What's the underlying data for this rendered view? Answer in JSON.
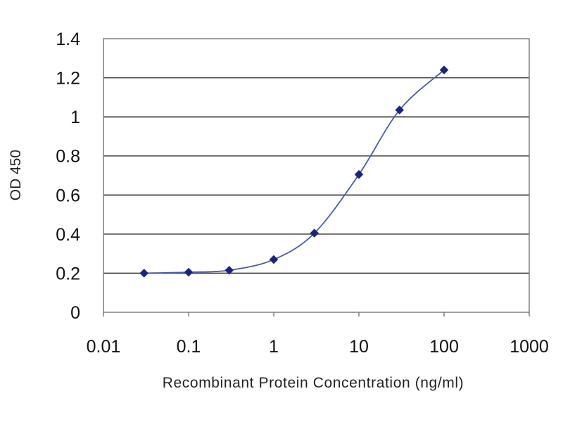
{
  "chart_data": {
    "type": "scatter",
    "title": "",
    "xlabel": "Recombinant Protein Concentration  (ng/ml)",
    "ylabel": "OD 450",
    "x_scale": "log",
    "xlim": [
      0.01,
      1000
    ],
    "ylim": [
      0,
      1.4
    ],
    "x_ticks": [
      0.01,
      0.1,
      1,
      10,
      100,
      1000
    ],
    "x_tick_labels": [
      "0.01",
      "0.1",
      "1",
      "10",
      "100",
      "1000"
    ],
    "y_ticks": [
      0,
      0.2,
      0.4,
      0.6,
      0.8,
      1,
      1.2,
      1.4
    ],
    "y_tick_labels": [
      "0",
      "0.2",
      "0.4",
      "0.6",
      "0.8",
      "1",
      "1.2",
      "1.4"
    ],
    "grid": "horizontal",
    "legend": "none",
    "series": [
      {
        "x": [
          0.03,
          0.1,
          0.3,
          1,
          3,
          10,
          30,
          100
        ],
        "y": [
          0.2,
          0.205,
          0.215,
          0.27,
          0.405,
          0.705,
          1.035,
          1.24
        ],
        "fitted_curve": true,
        "color": "#1a237e",
        "marker": "diamond"
      }
    ],
    "colors": {
      "plot_border": "#7f7f7f",
      "gridline": "#404040",
      "series": "#1a237e",
      "curve": "#4a5aa8"
    }
  }
}
